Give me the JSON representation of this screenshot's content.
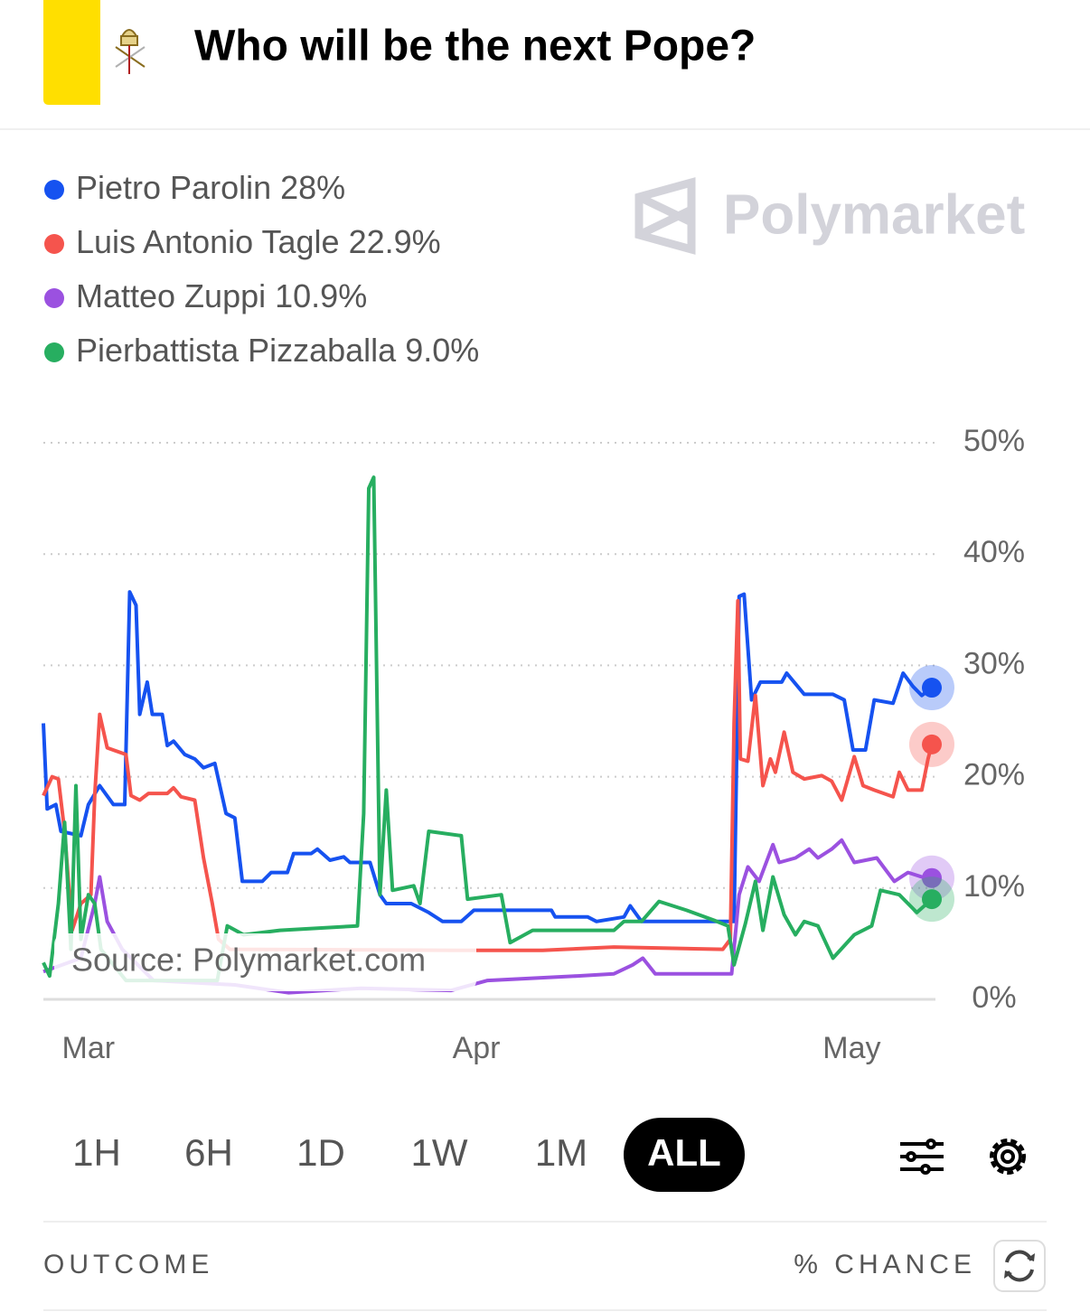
{
  "header": {
    "title": "Who will be the next Pope?"
  },
  "watermark": "Polymarket",
  "source": "Source: Polymarket.com",
  "chart_data": {
    "type": "line",
    "xlim": [
      0,
      71
    ],
    "xticks": [
      {
        "value": 3.6,
        "label": "Mar"
      },
      {
        "value": 34.6,
        "label": "Apr"
      },
      {
        "value": 64.6,
        "label": "May"
      }
    ],
    "ylim": [
      0,
      50
    ],
    "yticks": [
      {
        "value": 0,
        "label": "0%"
      },
      {
        "value": 10,
        "label": "10%"
      },
      {
        "value": 20,
        "label": "20%"
      },
      {
        "value": 30,
        "label": "30%"
      },
      {
        "value": 40,
        "label": "40%"
      },
      {
        "value": 50,
        "label": "50%"
      }
    ],
    "grid": true,
    "series": [
      {
        "name": "Pietro Parolin",
        "current_label": "28%",
        "color": "#1652f0",
        "x": [
          0,
          0.3,
          1.0,
          1.4,
          3.0,
          3.6,
          4.5,
          5.6,
          6.5,
          6.9,
          7.4,
          7.7,
          8.3,
          8.7,
          9.5,
          9.9,
          10.4,
          11.3,
          12.1,
          12.8,
          13.7,
          14.6,
          15.3,
          15.9,
          17.5,
          18.2,
          19.5,
          20.0,
          21.4,
          21.9,
          22.9,
          24.0,
          24.5,
          26.1,
          26.9,
          27.4,
          29.4,
          30.8,
          31.9,
          33.4,
          34.4,
          40.6,
          40.9,
          43.5,
          44.2,
          46.4,
          46.9,
          47.8,
          55.2,
          55.6,
          56.0,
          56.6,
          57.3,
          59.0,
          59.4,
          60.8,
          63.1,
          64.0,
          64.7,
          65.7,
          66.4,
          67.9,
          68.7,
          69.5,
          70.2,
          71.0
        ],
        "values": [
          24.8,
          17.1,
          17.5,
          15.1,
          14.7,
          17.5,
          19.2,
          17.5,
          17.5,
          36.6,
          35.4,
          25.6,
          28.5,
          25.6,
          25.6,
          22.8,
          23.2,
          22.0,
          21.6,
          20.8,
          21.2,
          16.7,
          16.3,
          10.6,
          10.6,
          11.4,
          11.4,
          13.1,
          13.1,
          13.5,
          12.5,
          12.8,
          12.3,
          12.3,
          9.4,
          8.6,
          8.6,
          7.8,
          7.0,
          7.0,
          8.0,
          8.0,
          7.4,
          7.4,
          7.0,
          7.4,
          8.4,
          7.0,
          7.0,
          36.2,
          36.4,
          26.9,
          28.5,
          28.5,
          29.3,
          27.4,
          27.4,
          26.9,
          22.4,
          22.4,
          26.9,
          26.6,
          29.3,
          28.1,
          27.3,
          28
        ]
      },
      {
        "name": "Luis Antonio Tagle",
        "current_label": "22.9%",
        "color": "#f5544d",
        "x": [
          0,
          0.7,
          1.2,
          1.7,
          2.3,
          3.0,
          3.8,
          4.1,
          4.5,
          5.1,
          6.6,
          7.0,
          7.7,
          8.4,
          9.9,
          10.4,
          11.0,
          12.1,
          12.8,
          13.5,
          14.0,
          14.9,
          34.4,
          39.9,
          45.6,
          54.3,
          54.9,
          55.2,
          55.5,
          55.7,
          56.3,
          56.9,
          57.5,
          58.1,
          58.5,
          59.2,
          59.9,
          60.8,
          62.2,
          63.0,
          63.8,
          64.8,
          65.5,
          66.4,
          67.9,
          68.4,
          69.1,
          70.2,
          70.7,
          71.0
        ],
        "values": [
          18.3,
          20.0,
          19.8,
          15.1,
          6.2,
          8.6,
          9.4,
          18.3,
          25.6,
          22.6,
          22.0,
          18.3,
          17.9,
          18.5,
          18.5,
          19.0,
          18.2,
          17.9,
          12.7,
          8.6,
          5.4,
          4.5,
          4.4,
          4.4,
          4.7,
          4.5,
          5.4,
          24.8,
          35.8,
          21.6,
          21.4,
          27.3,
          19.2,
          21.6,
          20.4,
          24.0,
          20.4,
          19.8,
          20.1,
          19.6,
          17.9,
          21.8,
          19.2,
          18.8,
          18.2,
          20.4,
          18.8,
          18.8,
          21.6,
          22.9
        ]
      },
      {
        "name": "Matteo Zuppi",
        "current_label": "10.9%",
        "color": "#9b51e0",
        "x": [
          0,
          3.0,
          4.1,
          4.5,
          5.1,
          6.3,
          8.8,
          15.3,
          19.6,
          25.4,
          32.6,
          35.5,
          42.7,
          45.6,
          47.1,
          47.9,
          48.9,
          55.0,
          55.6,
          56.3,
          57.2,
          58.3,
          58.8,
          60.1,
          61.2,
          61.9,
          63.0,
          63.8,
          64.8,
          66.6,
          68.0,
          69.1,
          70.2,
          71.0
        ],
        "values": [
          2.5,
          3.7,
          8.6,
          11.0,
          7.0,
          4.5,
          1.7,
          1.3,
          0.6,
          1.0,
          0.8,
          1.7,
          2.1,
          2.3,
          3.1,
          3.7,
          2.3,
          2.3,
          9.4,
          11.9,
          10.6,
          13.9,
          12.3,
          12.7,
          13.5,
          12.7,
          13.5,
          14.3,
          12.3,
          12.7,
          10.6,
          11.4,
          11.0,
          10.9
        ]
      },
      {
        "name": "Pierbattista Pizzaballa",
        "current_label": "9.0%",
        "color": "#27ae60",
        "x": [
          0,
          0.5,
          1.2,
          1.7,
          2.2,
          2.6,
          3.0,
          3.6,
          4.1,
          4.6,
          6.6,
          13.9,
          14.7,
          16.0,
          18.9,
          25.1,
          25.6,
          26.0,
          26.4,
          26.9,
          27.4,
          27.9,
          29.6,
          30.1,
          30.8,
          33.4,
          33.9,
          36.6,
          37.3,
          39.1,
          45.6,
          46.4,
          47.8,
          49.2,
          51.4,
          53.6,
          54.7,
          55.2,
          56.1,
          56.9,
          57.5,
          58.3,
          59.2,
          60.1,
          60.8,
          61.9,
          63.1,
          64.8,
          66.2,
          66.9,
          68.4,
          69.8,
          71.0
        ],
        "values": [
          3.3,
          2.1,
          8.6,
          15.9,
          4.5,
          19.2,
          5.4,
          9.4,
          8.6,
          4.5,
          1.7,
          1.7,
          6.6,
          5.8,
          6.2,
          6.6,
          16.7,
          45.9,
          46.9,
          9.4,
          18.8,
          9.8,
          10.2,
          8.6,
          15.1,
          14.7,
          9.0,
          9.4,
          5.1,
          6.2,
          6.2,
          7.0,
          7.0,
          8.8,
          8.0,
          7.1,
          6.6,
          3.1,
          6.8,
          10.6,
          6.2,
          11.0,
          7.6,
          5.8,
          7.0,
          6.6,
          3.7,
          5.8,
          6.6,
          9.8,
          9.4,
          7.8,
          9.0
        ]
      }
    ]
  },
  "time_ranges": [
    "1H",
    "6H",
    "1D",
    "1W",
    "1M",
    "ALL"
  ],
  "selected_range": 5,
  "table_header": {
    "outcome": "OUTCOME",
    "chance": "% CHANCE"
  }
}
